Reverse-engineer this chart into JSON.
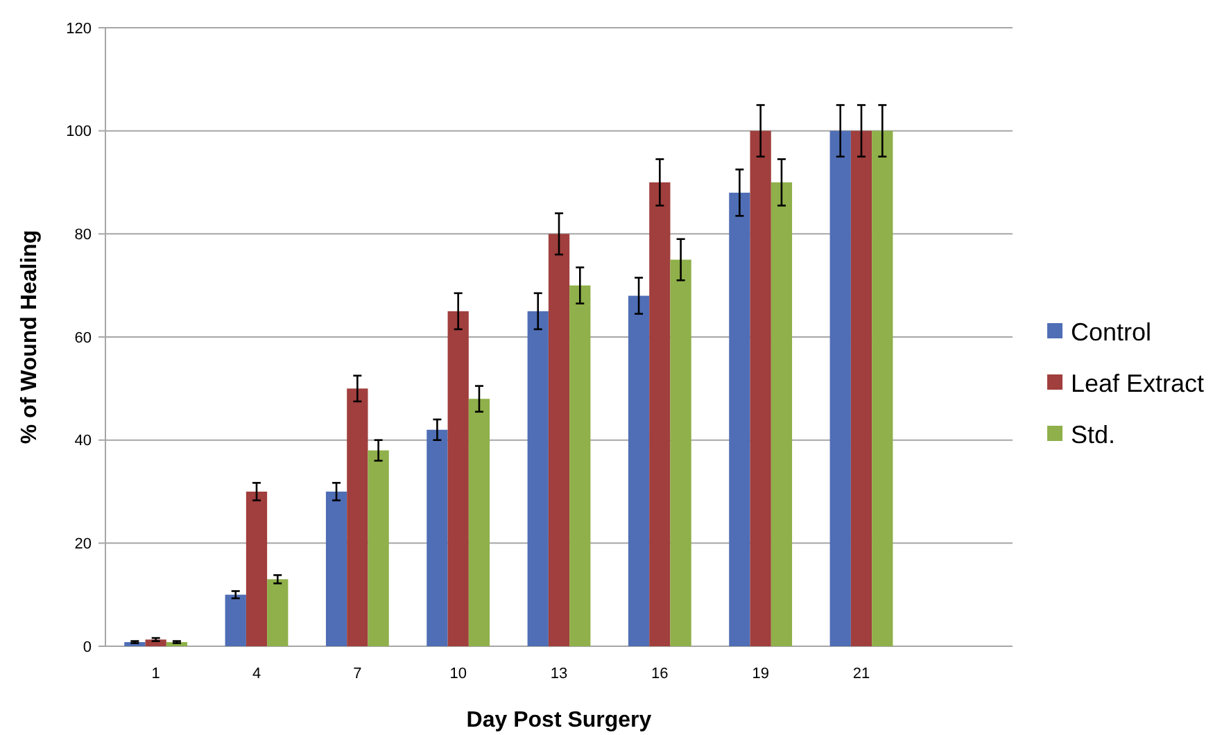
{
  "chart_data": {
    "type": "bar",
    "xlabel": "Day Post Surgery",
    "ylabel": "% of Wound Healing",
    "categories": [
      "1",
      "4",
      "7",
      "10",
      "13",
      "16",
      "19",
      "21"
    ],
    "series": [
      {
        "name": "Control",
        "color": "#4f6eb5",
        "values": [
          0.8,
          10,
          30,
          42,
          65,
          68,
          88,
          100
        ],
        "errors": [
          0.2,
          0.7,
          1.7,
          2,
          3.5,
          3.5,
          4.5,
          5
        ]
      },
      {
        "name": "Leaf Extract",
        "color": "#a03f3d",
        "values": [
          1.3,
          30,
          50,
          65,
          80,
          90,
          100,
          100
        ],
        "errors": [
          0.3,
          1.7,
          2.5,
          3.5,
          4,
          4.5,
          5,
          5
        ]
      },
      {
        "name": "Std.",
        "color": "#8fb04a",
        "values": [
          0.8,
          13,
          38,
          48,
          70,
          75,
          90,
          100
        ],
        "errors": [
          0.2,
          0.8,
          2,
          2.5,
          3.5,
          4,
          4.5,
          5
        ]
      }
    ],
    "ylim": [
      0,
      120
    ],
    "yticks": [
      0,
      20,
      40,
      60,
      80,
      100,
      120
    ],
    "grid": "y",
    "legend": "right"
  }
}
